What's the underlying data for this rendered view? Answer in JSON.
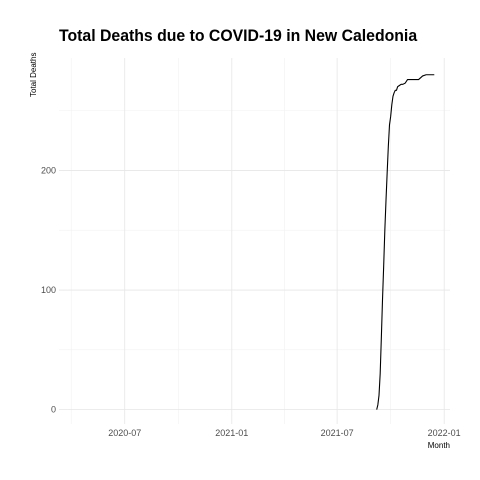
{
  "chart_data": {
    "type": "line",
    "title": "Total Deaths due to COVID-19 in New Caledonia",
    "xlabel": "Month",
    "ylabel": "Total Deaths",
    "x_ticks": [
      {
        "date": "2020-07-01",
        "label": "2020-07"
      },
      {
        "date": "2021-01-01",
        "label": "2021-01"
      },
      {
        "date": "2021-07-01",
        "label": "2021-07"
      },
      {
        "date": "2022-01-01",
        "label": "2022-01"
      }
    ],
    "y_ticks": [
      0,
      100,
      200
    ],
    "xlim": [
      "2020-03-10",
      "2022-01-11"
    ],
    "ylim": [
      -12,
      294
    ],
    "grid": true,
    "line_color": "#000000",
    "series": [
      {
        "x": [
          "2021-09-07",
          "2021-09-09",
          "2021-09-11",
          "2021-09-13",
          "2021-09-15",
          "2021-09-17",
          "2021-09-19",
          "2021-09-21",
          "2021-09-23",
          "2021-09-25",
          "2021-09-27",
          "2021-09-29",
          "2021-10-01",
          "2021-10-03",
          "2021-10-05",
          "2021-10-07",
          "2021-10-09",
          "2021-10-11",
          "2021-10-13",
          "2021-10-16",
          "2021-10-19",
          "2021-10-22",
          "2021-10-26",
          "2021-10-30",
          "2021-11-05",
          "2021-11-12",
          "2021-11-18",
          "2021-11-25",
          "2021-12-01",
          "2021-12-08",
          "2021-12-15"
        ],
        "y": [
          0,
          4,
          12,
          30,
          60,
          92,
          120,
          150,
          175,
          198,
          220,
          238,
          245,
          255,
          262,
          265,
          267,
          267,
          270,
          271,
          272,
          272,
          273,
          276,
          276,
          276,
          276,
          279,
          280,
          280,
          280
        ]
      }
    ]
  }
}
